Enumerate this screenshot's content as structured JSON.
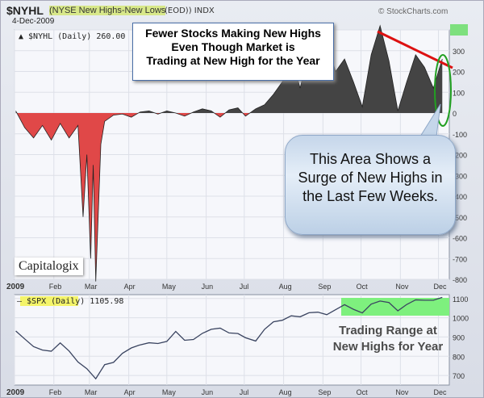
{
  "header": {
    "symbol": "$NYHL",
    "name": "(NYSE New Highs-New Lows",
    "exchange": "(EOD)) INDX",
    "date": "4-Dec-2009",
    "brand": "© StockCharts.com"
  },
  "chart_data": [
    {
      "type": "area",
      "title": "$NYHL (Daily) 260.00",
      "last": "260.00",
      "x": [
        "2009-01-02",
        "2009-01-09",
        "2009-01-16",
        "2009-01-23",
        "2009-01-30",
        "2009-02-06",
        "2009-02-13",
        "2009-02-20",
        "2009-02-24",
        "2009-02-27",
        "2009-03-02",
        "2009-03-04",
        "2009-03-06",
        "2009-03-10",
        "2009-03-13",
        "2009-03-20",
        "2009-03-27",
        "2009-04-03",
        "2009-04-10",
        "2009-04-17",
        "2009-04-24",
        "2009-05-01",
        "2009-05-08",
        "2009-05-15",
        "2009-05-22",
        "2009-05-29",
        "2009-06-05",
        "2009-06-12",
        "2009-06-19",
        "2009-06-26",
        "2009-07-02",
        "2009-07-10",
        "2009-07-17",
        "2009-07-24",
        "2009-07-31",
        "2009-08-07",
        "2009-08-14",
        "2009-08-21",
        "2009-08-28",
        "2009-09-04",
        "2009-09-11",
        "2009-09-18",
        "2009-09-25",
        "2009-10-02",
        "2009-10-09",
        "2009-10-16",
        "2009-10-23",
        "2009-10-30",
        "2009-11-06",
        "2009-11-13",
        "2009-11-20",
        "2009-11-27",
        "2009-12-04"
      ],
      "values": [
        10,
        -70,
        -120,
        -60,
        -130,
        -50,
        -120,
        -60,
        -500,
        -200,
        -700,
        -250,
        -810,
        -150,
        -40,
        -10,
        -5,
        -20,
        5,
        10,
        -5,
        10,
        0,
        -15,
        5,
        20,
        10,
        -20,
        15,
        25,
        -15,
        20,
        40,
        90,
        150,
        280,
        120,
        300,
        180,
        330,
        200,
        260,
        150,
        30,
        280,
        420,
        250,
        10,
        150,
        280,
        220,
        120,
        260
      ],
      "ylim": [
        -800,
        400
      ],
      "yticks": [
        400,
        300,
        200,
        100,
        0,
        -100,
        -200,
        -300,
        -400,
        -500,
        -600,
        -700,
        -800
      ],
      "colors": {
        "positive": "#444444",
        "negative": "#e04848"
      }
    },
    {
      "type": "line",
      "title": "$SPX (Daily) 1105.98",
      "last": "1105.98",
      "x": [
        "2009-01-02",
        "2009-01-09",
        "2009-01-16",
        "2009-01-23",
        "2009-01-30",
        "2009-02-06",
        "2009-02-13",
        "2009-02-20",
        "2009-02-27",
        "2009-03-06",
        "2009-03-13",
        "2009-03-20",
        "2009-03-27",
        "2009-04-03",
        "2009-04-09",
        "2009-04-17",
        "2009-04-24",
        "2009-05-01",
        "2009-05-08",
        "2009-05-15",
        "2009-05-22",
        "2009-05-29",
        "2009-06-05",
        "2009-06-12",
        "2009-06-19",
        "2009-06-26",
        "2009-07-02",
        "2009-07-10",
        "2009-07-17",
        "2009-07-24",
        "2009-07-31",
        "2009-08-07",
        "2009-08-14",
        "2009-08-21",
        "2009-08-28",
        "2009-09-04",
        "2009-09-11",
        "2009-09-18",
        "2009-09-25",
        "2009-10-02",
        "2009-10-09",
        "2009-10-16",
        "2009-10-23",
        "2009-10-30",
        "2009-11-06",
        "2009-11-13",
        "2009-11-20",
        "2009-11-27",
        "2009-12-04"
      ],
      "values": [
        931,
        890,
        850,
        832,
        826,
        869,
        827,
        770,
        735,
        683,
        756,
        768,
        815,
        843,
        857,
        870,
        866,
        877,
        929,
        883,
        887,
        919,
        940,
        946,
        921,
        918,
        896,
        879,
        940,
        979,
        987,
        1010,
        1005,
        1026,
        1029,
        1016,
        1042,
        1068,
        1044,
        1025,
        1071,
        1087,
        1079,
        1036,
        1069,
        1093,
        1091,
        1091,
        1106
      ],
      "ylim": [
        650,
        1120
      ],
      "yticks": [
        1100,
        1000,
        900,
        800,
        700
      ],
      "color": "#3a4460"
    }
  ],
  "months": [
    "2009",
    "Feb",
    "Mar",
    "Apr",
    "May",
    "Jun",
    "Jul",
    "Aug",
    "Sep",
    "Oct",
    "Nov",
    "Dec"
  ],
  "annotations": {
    "top_box": [
      "Fewer Stocks Making New Highs",
      "Even Though Market is",
      "Trading at New High for the Year"
    ],
    "bubble": [
      "This Area Shows a",
      "Surge of New Highs in",
      "the Last Few Weeks."
    ],
    "range": [
      "Trading Range at",
      "New Highs for Year"
    ],
    "logo": "Capitalogix"
  },
  "colors": {
    "trendline": "#dd1111",
    "ellipse": "#22a022",
    "range_fill": "#7ef07e",
    "label_highlight": "#f4f46a"
  }
}
